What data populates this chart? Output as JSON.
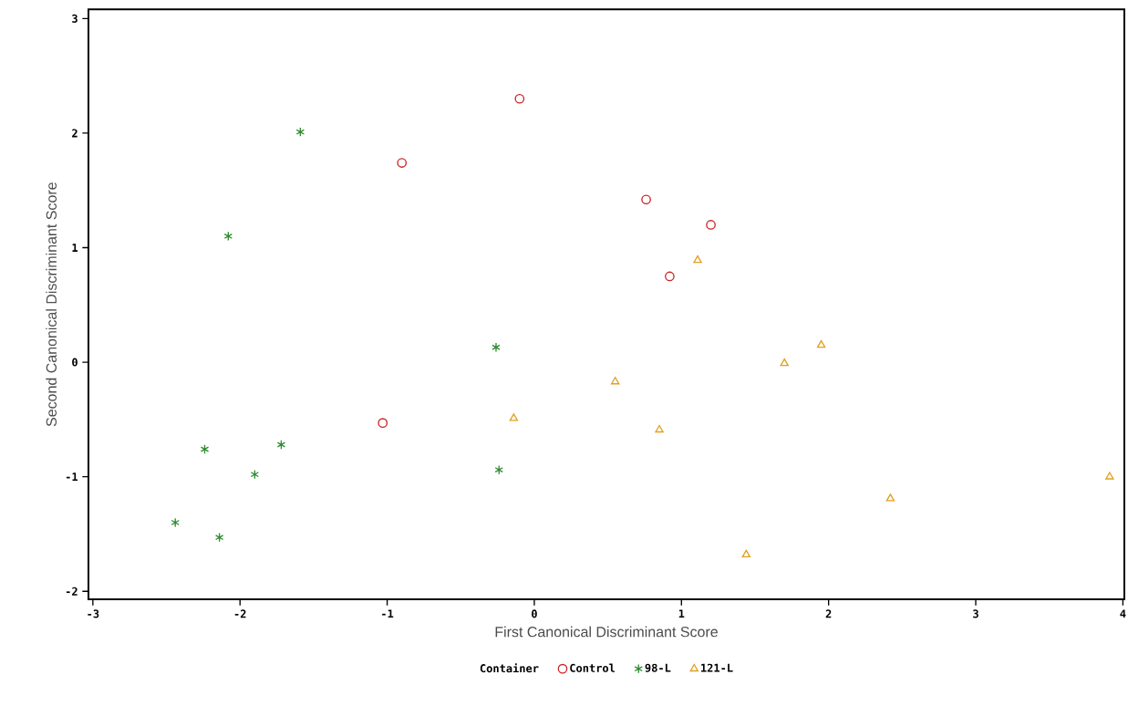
{
  "chart_data": {
    "type": "scatter",
    "xlabel": "First Canonical Discriminant Score",
    "ylabel": "Second Canonical Discriminant Score",
    "legend_title": "Container",
    "legend": "bottom",
    "grid": false,
    "xlim": [
      -3.03,
      4.01
    ],
    "ylim": [
      -2.07,
      3.08
    ],
    "xticks": [
      -3,
      -2,
      -1,
      0,
      1,
      2,
      3,
      4
    ],
    "yticks": [
      -2,
      -1,
      0,
      1,
      2,
      3
    ],
    "series": [
      {
        "name": "Control",
        "color": "#cc2222",
        "marker": "circle",
        "x": [
          -0.1,
          -0.9,
          0.76,
          1.2,
          0.92,
          -1.03
        ],
        "values": [
          2.3,
          1.74,
          1.42,
          1.2,
          0.75,
          -0.53
        ]
      },
      {
        "name": "98-L",
        "color": "#2e8b2e",
        "marker": "cross",
        "x": [
          -1.59,
          -2.08,
          -0.26,
          -2.24,
          -1.72,
          -1.9,
          -0.24,
          -2.44,
          -2.14
        ],
        "values": [
          2.01,
          1.1,
          0.13,
          -0.76,
          -0.72,
          -0.98,
          -0.94,
          -1.4,
          -1.53
        ]
      },
      {
        "name": "121-L",
        "color": "#e0a020",
        "marker": "triangle",
        "x": [
          1.11,
          0.55,
          -0.14,
          0.85,
          1.7,
          1.95,
          2.42,
          1.44,
          3.91
        ],
        "values": [
          0.89,
          -0.17,
          -0.49,
          -0.59,
          -0.01,
          0.15,
          -1.19,
          -1.68,
          -1.0
        ]
      }
    ]
  }
}
